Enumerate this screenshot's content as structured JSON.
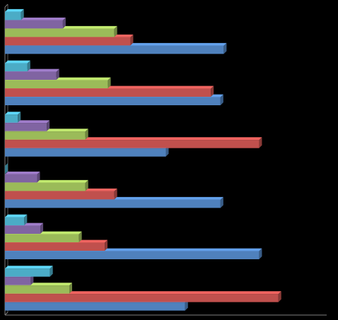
{
  "chart_data": {
    "type": "bar",
    "orientation": "horizontal",
    "style": "3d-clustered",
    "title": "",
    "xlabel": "",
    "ylabel": "",
    "grid": false,
    "legend": "none",
    "xlim": [
      0,
      100
    ],
    "categories": [
      "",
      "",
      "",
      "",
      "",
      ""
    ],
    "series": [
      {
        "color": "#4F81BD",
        "values": [
          68,
          67,
          50,
          67,
          79,
          56
        ]
      },
      {
        "color": "#C0504D",
        "values": [
          39,
          64,
          79,
          34,
          31,
          85
        ]
      },
      {
        "color": "#9BBB59",
        "values": [
          34,
          32,
          25,
          25,
          23,
          20
        ]
      },
      {
        "color": "#8064A2",
        "values": [
          18,
          16,
          13,
          10,
          11,
          8
        ]
      },
      {
        "color": "#4BACC6",
        "values": [
          5,
          7,
          4,
          0,
          6,
          14
        ]
      }
    ]
  }
}
